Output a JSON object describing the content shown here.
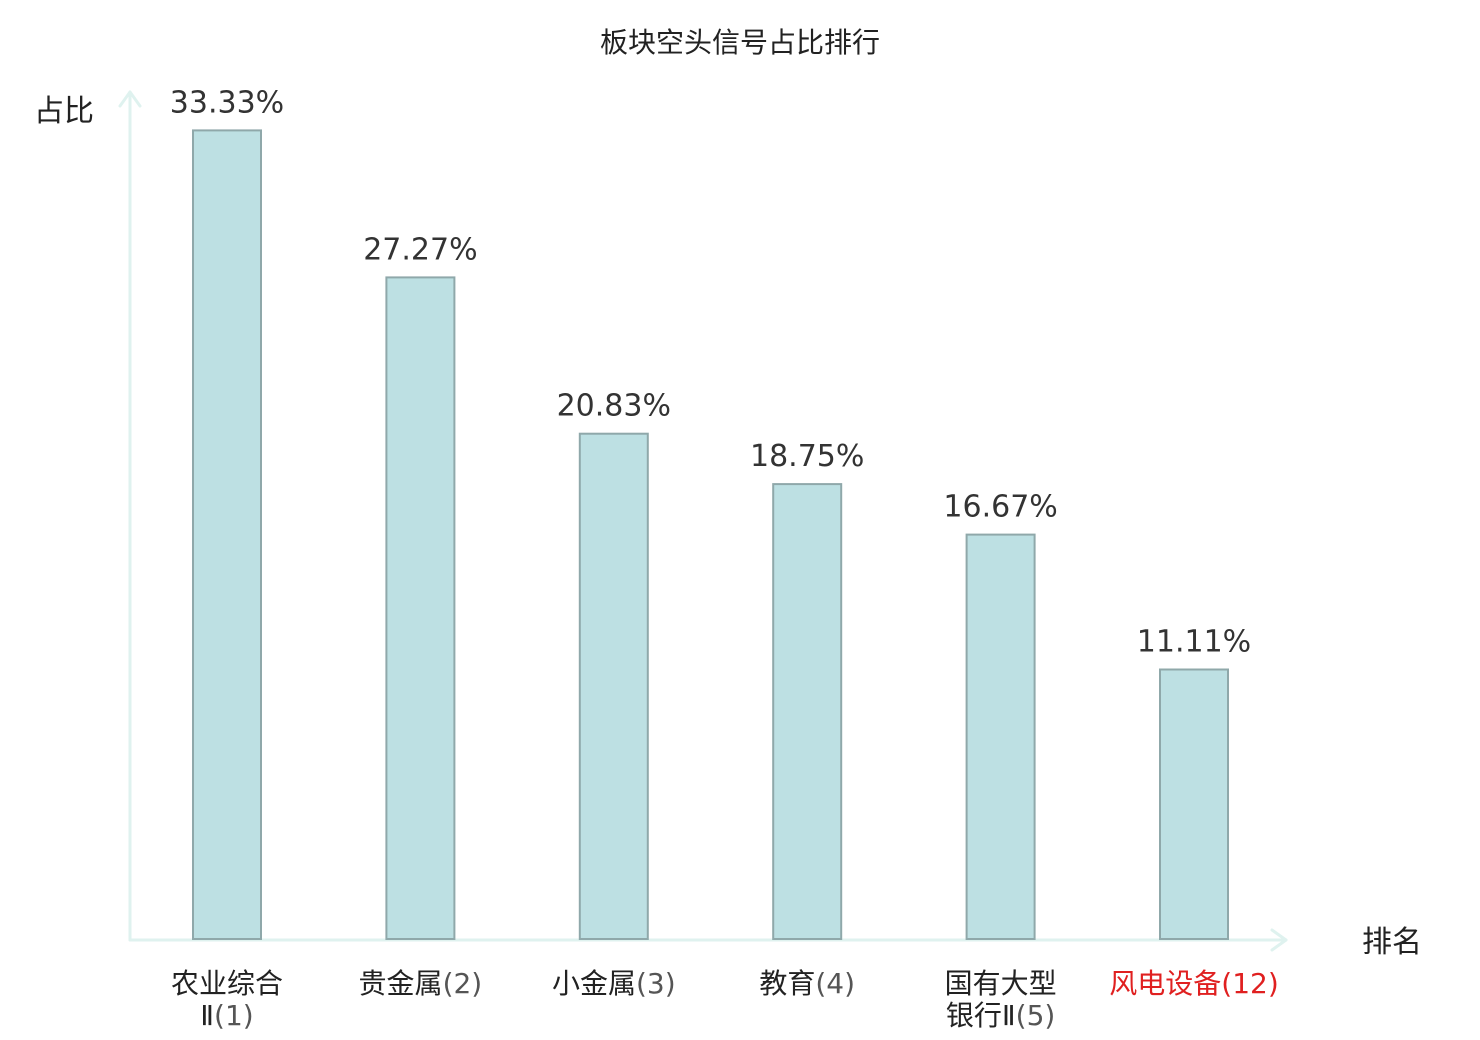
{
  "chart_data": {
    "type": "bar",
    "title": "板块空头信号占比排行",
    "ylabel": "占比",
    "xlabel": "排名",
    "ylim": [
      0,
      35
    ],
    "grid": false,
    "categories": [
      {
        "name_lines": [
          "农业综合",
          "Ⅱ"
        ],
        "rank": "(1)",
        "highlight": false
      },
      {
        "name_lines": [
          "贵金属"
        ],
        "rank": "(2)",
        "highlight": false
      },
      {
        "name_lines": [
          "小金属"
        ],
        "rank": "(3)",
        "highlight": false
      },
      {
        "name_lines": [
          "教育"
        ],
        "rank": "(4)",
        "highlight": false
      },
      {
        "name_lines": [
          "国有大型",
          "银行Ⅱ"
        ],
        "rank": "(5)",
        "highlight": false
      },
      {
        "name_lines": [
          "风电设备"
        ],
        "rank": "(12)",
        "highlight": true
      }
    ],
    "values": [
      33.33,
      27.27,
      20.83,
      18.75,
      16.67,
      11.11
    ],
    "value_labels": [
      "33.33%",
      "27.27%",
      "20.83%",
      "18.75%",
      "16.67%",
      "11.11%"
    ]
  },
  "colors": {
    "bar_fill": "#bde0e3",
    "bar_stroke": "#8fa8aa",
    "axis": "#dff2ef",
    "highlight": "#e02020"
  }
}
